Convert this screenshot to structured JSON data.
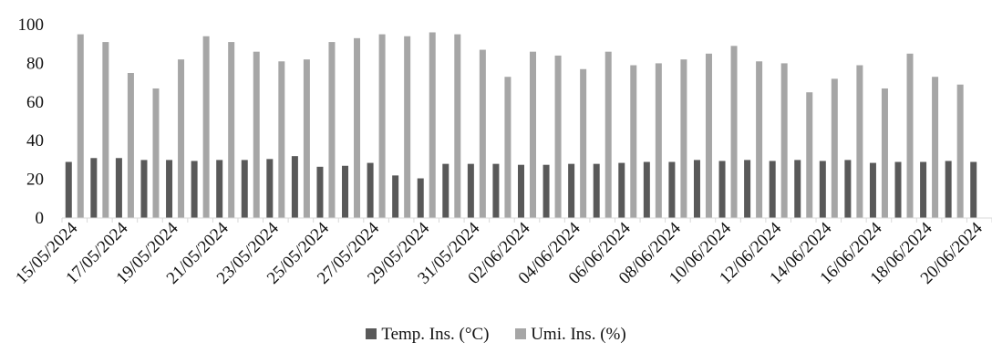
{
  "chart_data": {
    "type": "bar",
    "categories": [
      "15/05/2024",
      "16/05/2024",
      "17/05/2024",
      "18/05/2024",
      "19/05/2024",
      "20/05/2024",
      "21/05/2024",
      "22/05/2024",
      "23/05/2024",
      "24/05/2024",
      "25/05/2024",
      "26/05/2024",
      "27/05/2024",
      "28/05/2024",
      "29/05/2024",
      "30/05/2024",
      "31/05/2024",
      "01/06/2024",
      "02/06/2024",
      "03/06/2024",
      "04/06/2024",
      "05/06/2024",
      "06/06/2024",
      "07/06/2024",
      "08/06/2024",
      "09/06/2024",
      "10/06/2024",
      "11/06/2024",
      "12/06/2024",
      "13/06/2024",
      "14/06/2024",
      "15/06/2024",
      "16/06/2024",
      "17/06/2024",
      "18/06/2024",
      "19/06/2024",
      "20/06/2024"
    ],
    "tick_labels": [
      "15/05/2024",
      "17/05/2024",
      "19/05/2024",
      "21/05/2024",
      "23/05/2024",
      "25/05/2024",
      "27/05/2024",
      "29/05/2024",
      "31/05/2024",
      "02/06/2024",
      "04/06/2024",
      "06/06/2024",
      "08/06/2024",
      "10/06/2024",
      "12/06/2024",
      "14/06/2024",
      "16/06/2024",
      "18/06/2024",
      "20/06/2024"
    ],
    "series": [
      {
        "name": "Temp. Ins. (°C)",
        "color": "#595959",
        "values": [
          29,
          31,
          31,
          30,
          30,
          29.5,
          30,
          30,
          30.5,
          32,
          26.5,
          27,
          28.5,
          22,
          20.5,
          28,
          28,
          28,
          27.5,
          27.5,
          28,
          28,
          28.5,
          29,
          29,
          30,
          29.5,
          30,
          29.5,
          30,
          29.5,
          30,
          28.5,
          29,
          29,
          29.5,
          29
        ]
      },
      {
        "name": "Umi. Ins. (%)",
        "color": "#a6a6a6",
        "values": [
          95,
          91,
          75,
          67,
          82,
          94,
          91,
          86,
          81,
          82,
          91,
          93,
          95,
          94,
          96,
          95,
          87,
          73,
          86,
          84,
          77,
          86,
          79,
          80,
          82,
          85,
          89,
          81,
          80,
          65,
          72,
          79,
          67,
          85,
          73,
          69,
          null
        ]
      }
    ],
    "y_ticks": [
      0,
      20,
      40,
      60,
      80,
      100
    ],
    "ylim": [
      0,
      100
    ],
    "legend_position": "bottom",
    "grid": false
  },
  "legend": {
    "temp_label": "Temp. Ins. (°C)",
    "umi_label": "Umi. Ins. (%)"
  }
}
